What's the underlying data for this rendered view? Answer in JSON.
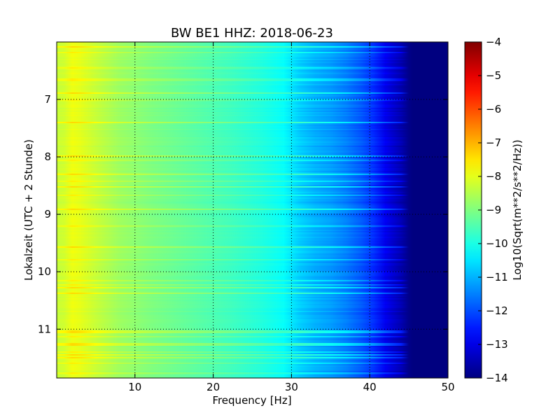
{
  "chart_data": {
    "type": "heatmap",
    "title": "BW BE1 HHZ: 2018-06-23",
    "xlabel": "Frequency [Hz]",
    "ylabel": "Lokalzeit (UTC + 2 Stunde)",
    "xlim": [
      0,
      50
    ],
    "ylim": [
      11.85,
      6.0
    ],
    "x_ticks": [
      10,
      20,
      30,
      40,
      50
    ],
    "x_tick_labels": [
      "10",
      "20",
      "30",
      "40",
      "50"
    ],
    "y_ticks": [
      7,
      8,
      9,
      10,
      11
    ],
    "y_tick_labels": [
      "7",
      "8",
      "9",
      "10",
      "11"
    ],
    "grid": true,
    "colorbar": {
      "label": "Log10(Sqrt(m**2/s**2/Hz))",
      "range": [
        -14,
        -4
      ],
      "ticks": [
        -14,
        -13,
        -12,
        -11,
        -10,
        -9,
        -8,
        -7,
        -6,
        -5,
        -4
      ],
      "tick_labels": [
        "−14",
        "−13",
        "−12",
        "−11",
        "−10",
        "−9",
        "−8",
        "−7",
        "−6",
        "−5",
        "−4"
      ],
      "colormap": "jet"
    },
    "spectrum_profile": {
      "frequency_hz": [
        0,
        1,
        2,
        3,
        5,
        8,
        12,
        17,
        22,
        26,
        29,
        31,
        33,
        35,
        37,
        39,
        40.5,
        42,
        44,
        45,
        45.5,
        50
      ],
      "log_amplitude": [
        -8.3,
        -8.2,
        -7.9,
        -8.0,
        -8.3,
        -8.7,
        -9.0,
        -9.3,
        -9.6,
        -9.9,
        -10.2,
        -10.7,
        -11.0,
        -11.2,
        -11.5,
        -11.9,
        -12.3,
        -12.9,
        -13.5,
        -13.9,
        -14.0,
        -14.0
      ]
    }
  }
}
